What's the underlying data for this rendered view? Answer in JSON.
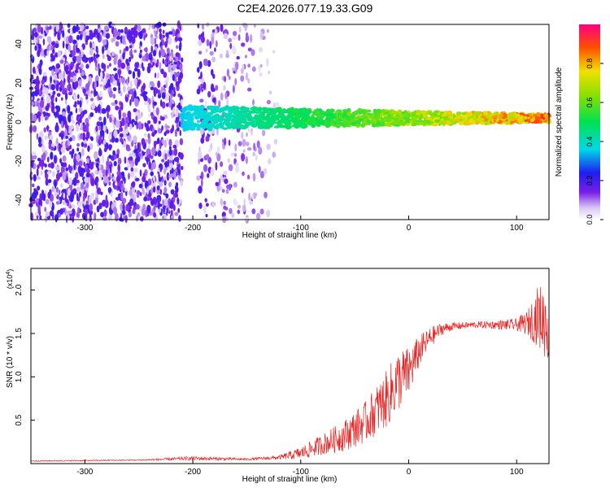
{
  "title": "C2E4.2026.077.19.33.G09",
  "colors": {
    "snr_line": "#ee2222",
    "axis": "#000000"
  },
  "chart_data": [
    {
      "type": "heatmap",
      "xlabel": "Height of straight line (km)",
      "ylabel": "Frequency (Hz)",
      "xlim": [
        -350,
        130
      ],
      "ylim": [
        -50,
        50
      ],
      "xticks": [
        -300,
        -200,
        -100,
        0,
        100
      ],
      "yticks": [
        -40,
        -20,
        0,
        20,
        40
      ],
      "colorbar": {
        "label": "Normalized spectral amplitude",
        "range": [
          0,
          1
        ],
        "ticks": [
          0.0,
          0.2,
          0.4,
          0.6,
          0.8
        ]
      },
      "structure": [
        {
          "region": "noise",
          "x_range": [
            -350,
            -210
          ],
          "freq_range": [
            -50,
            50
          ],
          "amplitude": 0.15
        },
        {
          "region": "noise-gap",
          "x_range": [
            -205,
            -195
          ],
          "freq_range": [
            -50,
            50
          ],
          "amplitude": 0.0
        },
        {
          "region": "noise-sparse",
          "x_range": [
            -195,
            -120
          ],
          "freq_range": [
            -50,
            50
          ],
          "amplitude": 0.1
        },
        {
          "region": "signal-band",
          "x_range": [
            -210,
            130
          ],
          "freq_center": 2,
          "freq_halfwidth_start": 6,
          "freq_halfwidth_end": 2,
          "amplitude_start": 0.35,
          "amplitude_end": 0.95
        }
      ]
    },
    {
      "type": "line",
      "xlabel": "Height of straight line (km)",
      "ylabel": "SNR (10 * v/v)",
      "y_multiplier": "(x10",
      "y_multiplier_exp": "4",
      "y_multiplier_close": ")",
      "xlim": [
        -350,
        130
      ],
      "ylim": [
        0,
        2.25
      ],
      "xticks": [
        -300,
        -200,
        -100,
        0,
        100
      ],
      "yticks": [
        0.5,
        1.0,
        1.5,
        2.0
      ],
      "ytick_labels": [
        "0.5",
        "1.0",
        "1.5",
        "2.0"
      ],
      "trend": {
        "x": [
          -350,
          -250,
          -200,
          -150,
          -120,
          -100,
          -80,
          -60,
          -40,
          -20,
          -10,
          0,
          10,
          20,
          30,
          40,
          60,
          80,
          100,
          110,
          120,
          130
        ],
        "y": [
          0.03,
          0.04,
          0.06,
          0.05,
          0.07,
          0.12,
          0.22,
          0.32,
          0.48,
          0.75,
          0.95,
          1.05,
          1.3,
          1.45,
          1.55,
          1.58,
          1.6,
          1.6,
          1.6,
          1.62,
          1.7,
          1.6
        ],
        "noise_amplitude": [
          0.005,
          0.005,
          0.02,
          0.01,
          0.02,
          0.06,
          0.1,
          0.15,
          0.2,
          0.28,
          0.3,
          0.25,
          0.15,
          0.1,
          0.06,
          0.04,
          0.03,
          0.04,
          0.06,
          0.12,
          0.3,
          0.4
        ]
      }
    }
  ]
}
